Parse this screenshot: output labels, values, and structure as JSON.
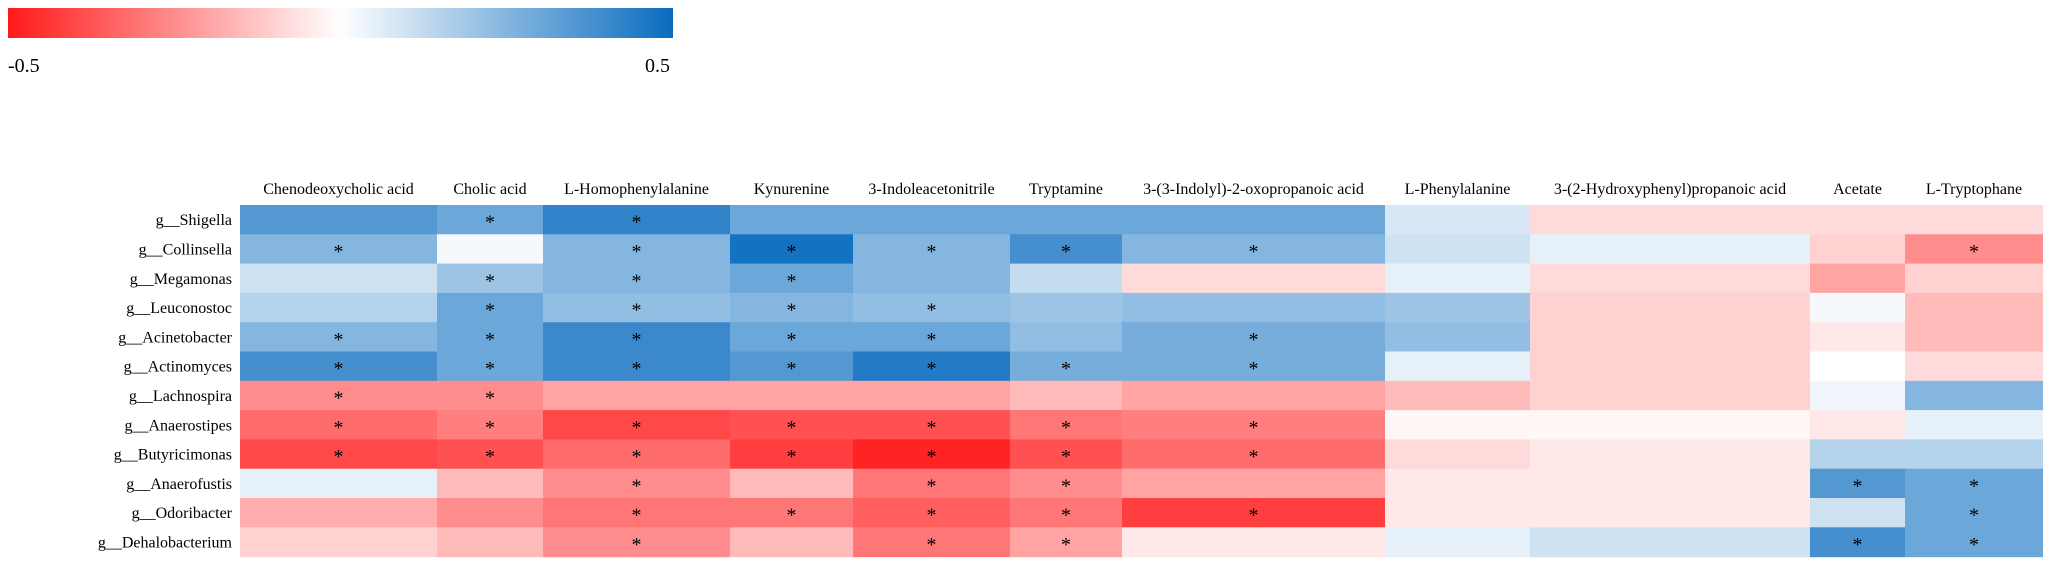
{
  "chart_data": {
    "type": "heatmap",
    "title": "",
    "xlabel": "",
    "ylabel": "",
    "colorbar": {
      "min": -0.5,
      "max": 0.5,
      "min_label": "-0.5",
      "max_label": "0.5",
      "colors": {
        "negative": "#ff1a1a",
        "zero": "#ffffff",
        "positive": "#0a6cbf"
      }
    },
    "columns": [
      "Chenodeoxycholic acid",
      "Cholic acid",
      "L-Homophenylalanine",
      "Kynurenine",
      "3-Indoleacetonitrile",
      "Tryptamine",
      "3-(3-Indolyl)-2-oxopropanoic acid",
      "L-Phenylalanine",
      "3-(2-Hydroxyphenyl)propanoic acid",
      "Acetate",
      "L-Tryptophane"
    ],
    "rows": [
      "g__Shigella",
      "g__Collinsella",
      "g__Megamonas",
      "g__Leuconostoc",
      "g__Acinetobacter",
      "g__Actinomyces",
      "g__Lachnospira",
      "g__Anaerostipes",
      "g__Butyricimonas",
      "g__Anaerofustis",
      "g__Odoribacter",
      "g__Dehalobacterium"
    ],
    "values": [
      [
        0.35,
        0.3,
        0.42,
        0.3,
        0.3,
        0.3,
        0.3,
        0.08,
        -0.08,
        -0.08,
        -0.08
      ],
      [
        0.25,
        0.02,
        0.25,
        0.48,
        0.25,
        0.38,
        0.25,
        0.1,
        0.05,
        -0.1,
        -0.25
      ],
      [
        0.1,
        0.2,
        0.25,
        0.3,
        0.25,
        0.12,
        -0.08,
        0.05,
        -0.08,
        -0.2,
        -0.1
      ],
      [
        0.15,
        0.3,
        0.22,
        0.25,
        0.22,
        0.2,
        0.22,
        0.2,
        -0.1,
        0.02,
        -0.15
      ],
      [
        0.25,
        0.3,
        0.4,
        0.3,
        0.3,
        0.22,
        0.28,
        0.22,
        -0.1,
        -0.05,
        -0.15
      ],
      [
        0.38,
        0.3,
        0.4,
        0.35,
        0.45,
        0.28,
        0.28,
        0.05,
        -0.1,
        0.0,
        -0.08
      ],
      [
        -0.25,
        -0.25,
        -0.2,
        -0.2,
        -0.2,
        -0.15,
        -0.2,
        -0.15,
        -0.1,
        0.03,
        0.25
      ],
      [
        -0.32,
        -0.28,
        -0.4,
        -0.38,
        -0.38,
        -0.3,
        -0.28,
        -0.02,
        -0.02,
        -0.05,
        0.05
      ],
      [
        -0.4,
        -0.38,
        -0.32,
        -0.42,
        -0.48,
        -0.38,
        -0.32,
        -0.08,
        -0.05,
        0.15,
        0.15
      ],
      [
        0.05,
        -0.15,
        -0.25,
        -0.15,
        -0.3,
        -0.25,
        -0.2,
        -0.05,
        -0.05,
        0.35,
        0.3
      ],
      [
        -0.18,
        -0.25,
        -0.3,
        -0.3,
        -0.35,
        -0.3,
        -0.42,
        -0.05,
        -0.05,
        0.1,
        0.3
      ],
      [
        -0.1,
        -0.15,
        -0.25,
        -0.15,
        -0.3,
        -0.2,
        -0.05,
        0.05,
        0.1,
        0.38,
        0.3
      ]
    ],
    "significance": [
      [
        "",
        "*",
        "*",
        "",
        "",
        "",
        "",
        "",
        "",
        "",
        ""
      ],
      [
        "*",
        "",
        "*",
        "*",
        "*",
        "*",
        "*",
        "",
        "",
        "",
        "*"
      ],
      [
        "",
        "*",
        "*",
        "*",
        "",
        "",
        "",
        "",
        "",
        "",
        ""
      ],
      [
        "",
        "*",
        "*",
        "*",
        "*",
        "",
        "",
        "",
        "",
        "",
        ""
      ],
      [
        "*",
        "*",
        "*",
        "*",
        "*",
        "",
        "*",
        "",
        "",
        "",
        ""
      ],
      [
        "*",
        "*",
        "*",
        "*",
        "*",
        "*",
        "*",
        "",
        "",
        "",
        ""
      ],
      [
        "*",
        "*",
        "",
        "",
        "",
        "",
        "",
        "",
        "",
        "",
        ""
      ],
      [
        "*",
        "*",
        "*",
        "*",
        "*",
        "*",
        "*",
        "",
        "",
        "",
        ""
      ],
      [
        "*",
        "*",
        "*",
        "*",
        "*",
        "*",
        "*",
        "",
        "",
        "",
        ""
      ],
      [
        "",
        "",
        "*",
        "",
        "*",
        "*",
        "",
        "",
        "",
        "*",
        "*"
      ],
      [
        "",
        "",
        "*",
        "*",
        "*",
        "*",
        "*",
        "",
        "",
        "",
        "*"
      ],
      [
        "",
        "",
        "*",
        "",
        "*",
        "*",
        "",
        "",
        "",
        "*",
        "*"
      ]
    ]
  }
}
